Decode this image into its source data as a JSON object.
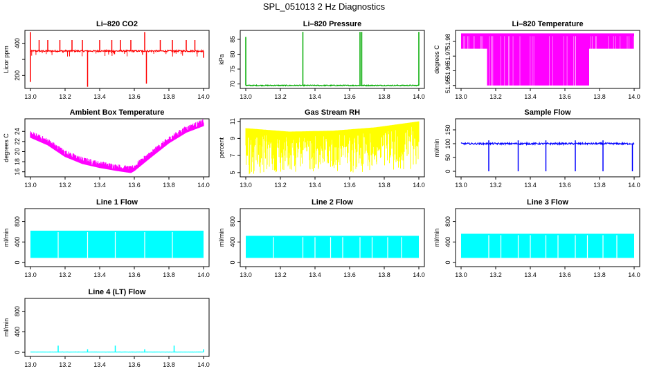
{
  "figure": {
    "title": "SPL_051013  2 Hz Diagnostics"
  },
  "chart_data": [
    {
      "id": "co2",
      "type": "line",
      "title": "Li–820 CO2",
      "ylabel": "Licor ppm",
      "xlim": [
        13.0,
        14.0
      ],
      "ylim": [
        120,
        480
      ],
      "yticks": [
        200,
        300,
        400
      ],
      "yticklabels": [
        "200",
        "",
        "400"
      ],
      "xticks": [
        13.0,
        13.2,
        13.4,
        13.6,
        13.8,
        14.0
      ],
      "xticklabels": [
        "13.0",
        "13.2",
        "13.4",
        "13.6",
        "13.8",
        "14.0"
      ],
      "color": "#ff0000",
      "style": "noisy",
      "series": [
        {
          "baseline": 352,
          "noise": 5,
          "spikes": [
            [
              13.0,
              470
            ],
            [
              13.0,
              160
            ],
            [
              13.05,
              420
            ],
            [
              13.1,
              420
            ],
            [
              13.17,
              420
            ],
            [
              13.24,
              420
            ],
            [
              13.3,
              420
            ],
            [
              13.33,
              130
            ],
            [
              13.4,
              420
            ],
            [
              13.47,
              420
            ],
            [
              13.52,
              420
            ],
            [
              13.58,
              420
            ],
            [
              13.66,
              470
            ],
            [
              13.67,
              150
            ],
            [
              13.75,
              420
            ],
            [
              13.82,
              420
            ],
            [
              13.9,
              420
            ],
            [
              13.95,
              420
            ],
            [
              14.0,
              310
            ]
          ]
        }
      ]
    },
    {
      "id": "pressure",
      "type": "line",
      "title": "Li–820 Pressure",
      "ylabel": "kPa",
      "xlim": [
        13.0,
        14.0
      ],
      "ylim": [
        68.5,
        88
      ],
      "yticks": [
        70,
        75,
        80,
        85
      ],
      "yticklabels": [
        "70",
        "75",
        "80",
        "85"
      ],
      "xticks": [
        13.0,
        13.2,
        13.4,
        13.6,
        13.8,
        14.0
      ],
      "xticklabels": [
        "13.0",
        "13.2",
        "13.4",
        "13.6",
        "13.8",
        "14.0"
      ],
      "color": "#00aa00",
      "style": "noisy",
      "series": [
        {
          "baseline": 69.5,
          "noise": 0.15,
          "spikes": [
            [
              13.0,
              85.8
            ],
            [
              13.33,
              87.5
            ],
            [
              13.66,
              87.5
            ],
            [
              13.67,
              87.5
            ],
            [
              14.0,
              87.5
            ]
          ]
        }
      ]
    },
    {
      "id": "li820temp",
      "type": "area",
      "title": "Li–820 Temperature",
      "ylabel": "degrees C",
      "xlim": [
        13.0,
        14.0
      ],
      "ylim": [
        51.948,
        51.9875
      ],
      "yticks": [
        51.95,
        51.96,
        51.97,
        51.98
      ],
      "yticklabels": [
        "51.95",
        "51.96",
        "51.97",
        "51.98"
      ],
      "xticks": [
        13.0,
        13.2,
        13.4,
        13.6,
        13.8,
        14.0
      ],
      "xticklabels": [
        "13.0",
        "13.2",
        "13.4",
        "13.6",
        "13.8",
        "14.0"
      ],
      "color": "#ff00ff",
      "style": "band",
      "series": [
        {
          "x": [
            13.0,
            13.14,
            13.15,
            13.74,
            13.75,
            14.0
          ],
          "low": [
            51.975,
            51.975,
            51.95,
            51.95,
            51.975,
            51.975
          ],
          "high": [
            51.985,
            51.985,
            51.985,
            51.985,
            51.985,
            51.985
          ],
          "cap": 51.985
        }
      ]
    },
    {
      "id": "ambient",
      "type": "line",
      "title": "Ambient Box Temperature",
      "ylabel": "degrees C",
      "xlim": [
        13.0,
        14.0
      ],
      "ylim": [
        15,
        26.5
      ],
      "yticks": [
        16,
        18,
        20,
        22,
        24
      ],
      "yticklabels": [
        "16",
        "18",
        "20",
        "22",
        "24"
      ],
      "xticks": [
        13.0,
        13.2,
        13.4,
        13.6,
        13.8,
        14.0
      ],
      "xticklabels": [
        "13.0",
        "13.2",
        "13.4",
        "13.6",
        "13.8",
        "14.0"
      ],
      "color": "#ff00ff",
      "style": "thick",
      "series": [
        {
          "x": [
            13.0,
            13.1,
            13.2,
            13.3,
            13.4,
            13.5,
            13.58,
            13.6,
            13.7,
            13.8,
            13.9,
            14.0
          ],
          "y": [
            23.3,
            21.8,
            19.5,
            18.1,
            17.3,
            16.7,
            16.3,
            16.7,
            19.5,
            22.2,
            24.3,
            25.6
          ],
          "noise": 0.6
        }
      ]
    },
    {
      "id": "rh",
      "type": "area",
      "title": "Gas Stream RH",
      "ylabel": "percent",
      "xlim": [
        13.0,
        14.0
      ],
      "ylim": [
        4.5,
        11.3
      ],
      "yticks": [
        5,
        7,
        9,
        11
      ],
      "yticklabels": [
        "5",
        "7",
        "9",
        "11"
      ],
      "xticks": [
        13.0,
        13.2,
        13.4,
        13.6,
        13.8,
        14.0
      ],
      "xticklabels": [
        "13.0",
        "13.2",
        "13.4",
        "13.6",
        "13.8",
        "14.0"
      ],
      "color": "#ffff00",
      "style": "spiky",
      "series": [
        {
          "x": [
            13.0,
            13.25,
            13.5,
            13.75,
            14.0
          ],
          "top": [
            10.2,
            9.8,
            9.9,
            10.3,
            11.0
          ],
          "bottom": [
            5.0,
            5.5,
            5.5,
            5.5,
            6.0
          ]
        }
      ]
    },
    {
      "id": "sampleflow",
      "type": "line",
      "title": "Sample Flow",
      "ylabel": "ml/min",
      "xlim": [
        13.0,
        14.0
      ],
      "ylim": [
        -20,
        190
      ],
      "yticks": [
        0,
        50,
        100,
        150
      ],
      "yticklabels": [
        "0",
        "50",
        "100",
        "150"
      ],
      "xticks": [
        13.0,
        13.2,
        13.4,
        13.6,
        13.8,
        14.0
      ],
      "xticklabels": [
        "13.0",
        "13.2",
        "13.4",
        "13.6",
        "13.8",
        "14.0"
      ],
      "color": "#0000ff",
      "style": "noisy",
      "series": [
        {
          "baseline": 100,
          "noise": 3,
          "spikes": [
            [
              13.16,
              0
            ],
            [
              13.16,
              112
            ],
            [
              13.33,
              0
            ],
            [
              13.33,
              112
            ],
            [
              13.49,
              0
            ],
            [
              13.49,
              112
            ],
            [
              13.66,
              0
            ],
            [
              13.66,
              112
            ],
            [
              13.82,
              0
            ],
            [
              13.82,
              112
            ],
            [
              13.99,
              0
            ]
          ]
        }
      ]
    },
    {
      "id": "line1",
      "type": "area",
      "title": "Line 1 Flow",
      "ylabel": "ml/min",
      "xlim": [
        13.0,
        14.0
      ],
      "ylim": [
        -80,
        1050
      ],
      "yticks": [
        0,
        400,
        800
      ],
      "yticklabels": [
        "0",
        "400",
        "800"
      ],
      "xticks": [
        13.0,
        13.2,
        13.4,
        13.6,
        13.8,
        14.0
      ],
      "xticklabels": [
        "13.0",
        "13.2",
        "13.4",
        "13.6",
        "13.8",
        "14.0"
      ],
      "color": "#00ffff",
      "style": "block",
      "series": [
        {
          "top": 620,
          "bottom": 90,
          "gaps": [
            13.16,
            13.33,
            13.49,
            13.66,
            13.82
          ]
        }
      ]
    },
    {
      "id": "line2",
      "type": "area",
      "title": "Line 2 Flow",
      "ylabel": "ml/min",
      "xlim": [
        13.0,
        14.0
      ],
      "ylim": [
        -80,
        1050
      ],
      "yticks": [
        0,
        400,
        800
      ],
      "yticklabels": [
        "0",
        "400",
        "800"
      ],
      "xticks": [
        13.0,
        13.2,
        13.4,
        13.6,
        13.8,
        14.0
      ],
      "xticklabels": [
        "13.0",
        "13.2",
        "13.4",
        "13.6",
        "13.8",
        "14.0"
      ],
      "color": "#00ffff",
      "style": "block",
      "series": [
        {
          "top": 520,
          "bottom": 90,
          "gaps": [
            13.16,
            13.33,
            13.4,
            13.49,
            13.56,
            13.66,
            13.73,
            13.82,
            13.9
          ]
        }
      ]
    },
    {
      "id": "line3",
      "type": "area",
      "title": "Line 3 Flow",
      "ylabel": "ml/min",
      "xlim": [
        13.0,
        14.0
      ],
      "ylim": [
        -80,
        1050
      ],
      "yticks": [
        0,
        400,
        800
      ],
      "yticklabels": [
        "0",
        "400",
        "800"
      ],
      "xticks": [
        13.0,
        13.2,
        13.4,
        13.6,
        13.8,
        14.0
      ],
      "xticklabels": [
        "13.0",
        "13.2",
        "13.4",
        "13.6",
        "13.8",
        "14.0"
      ],
      "color": "#00ffff",
      "style": "block",
      "series": [
        {
          "top": 560,
          "bottom": 90,
          "gaps": [
            13.16,
            13.23,
            13.33,
            13.4,
            13.49,
            13.56,
            13.66,
            13.73,
            13.82,
            13.9
          ]
        }
      ]
    },
    {
      "id": "line4",
      "type": "line",
      "title": "Line 4 (LT) Flow",
      "ylabel": "ml/min",
      "xlim": [
        13.0,
        14.0
      ],
      "ylim": [
        -80,
        1050
      ],
      "yticks": [
        0,
        400,
        800
      ],
      "yticklabels": [
        "0",
        "400",
        "800"
      ],
      "xticks": [
        13.0,
        13.2,
        13.4,
        13.6,
        13.8,
        14.0
      ],
      "xticklabels": [
        "13.0",
        "13.2",
        "13.4",
        "13.6",
        "13.8",
        "14.0"
      ],
      "color": "#00ffff",
      "style": "noisy",
      "series": [
        {
          "baseline": 5,
          "noise": 2,
          "spikes": [
            [
              13.16,
              130
            ],
            [
              13.33,
              60
            ],
            [
              13.49,
              130
            ],
            [
              13.66,
              60
            ],
            [
              13.83,
              130
            ],
            [
              14.0,
              60
            ]
          ]
        }
      ]
    }
  ]
}
